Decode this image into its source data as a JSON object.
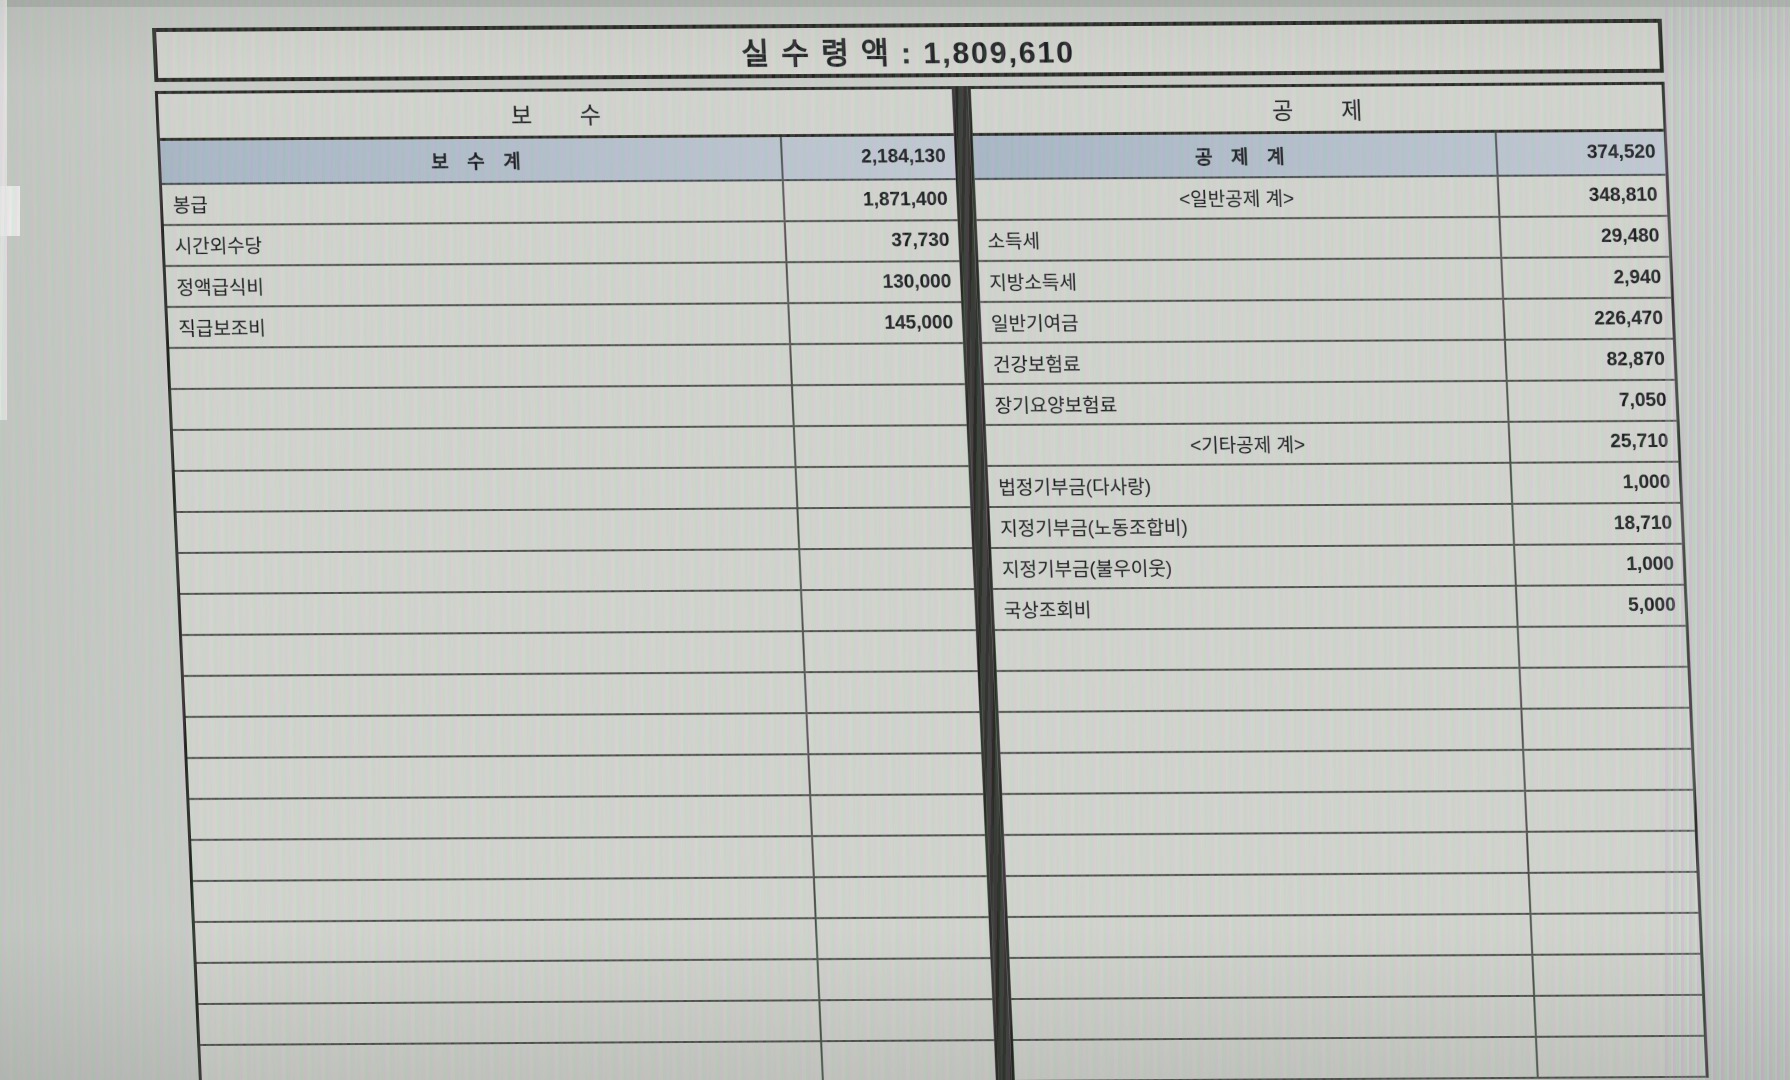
{
  "payslip": {
    "title": "실 수 령 액 : 1,809,610",
    "net_pay": "1,809,610",
    "pay": {
      "section_title": "보 수",
      "total_label": "보 수 계",
      "total_value": "2,184,130",
      "rows": [
        {
          "label": "봉급",
          "value": "1,871,400"
        },
        {
          "label": "시간외수당",
          "value": "37,730"
        },
        {
          "label": "정액급식비",
          "value": "130,000"
        },
        {
          "label": "직급보조비",
          "value": "145,000"
        }
      ],
      "empty_row_count": 18
    },
    "deductions": {
      "section_title": "공 제",
      "total_label": "공 제 계",
      "total_value": "374,520",
      "rows": [
        {
          "label": "<일반공제 계>",
          "value": "348,810",
          "type": "subtotal"
        },
        {
          "label": "소득세",
          "value": "29,480",
          "type": "item"
        },
        {
          "label": "지방소득세",
          "value": "2,940",
          "type": "item"
        },
        {
          "label": "일반기여금",
          "value": "226,470",
          "type": "item"
        },
        {
          "label": "건강보험료",
          "value": "82,870",
          "type": "item"
        },
        {
          "label": "장기요양보험료",
          "value": "7,050",
          "type": "item"
        },
        {
          "label": "<기타공제 계>",
          "value": "25,710",
          "type": "subtotal"
        },
        {
          "label": "법정기부금(다사랑)",
          "value": "1,000",
          "type": "item"
        },
        {
          "label": "지정기부금(노동조합비)",
          "value": "18,710",
          "type": "item"
        },
        {
          "label": "지정기부금(불우이웃)",
          "value": "1,000",
          "type": "item"
        },
        {
          "label": "국상조회비",
          "value": "5,000",
          "type": "item"
        }
      ],
      "empty_row_count": 11
    },
    "colors": {
      "screen_bg": "#c9cdc6",
      "cell_bg": "#d2d5cd",
      "total_row_shade": "#aebdc9",
      "grid_line": "#23241f",
      "text": "#1c1e20"
    }
  }
}
